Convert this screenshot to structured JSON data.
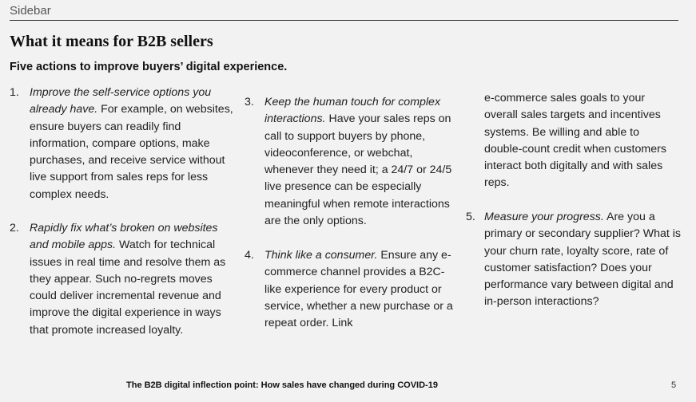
{
  "header": {
    "section_label": "Sidebar",
    "title": "What it means for B2B sellers",
    "subtitle": "Five actions to improve buyers’ digital experience."
  },
  "items": [
    {
      "number": "1.",
      "lead": "Improve the self-service options you already have.",
      "body": " For example, on websites, ensure buyers can readily find information, compare options, make purchases, and receive service without live support from sales reps for less complex needs."
    },
    {
      "number": "2.",
      "lead": "Rapidly fix what’s broken on websites and mobile apps.",
      "body": " Watch for technical issues in real time and resolve them as they appear. Such no-regrets moves could deliver incremental revenue and improve the digital experience in ways that promote increased loyalty."
    },
    {
      "number": "3.",
      "lead": "Keep the human touch for complex interactions.",
      "body": " Have your sales reps on call to support buyers by phone, videoconference, or webchat, whenever they need it; a 24/7 or 24/5 live presence can be especially meaningful when remote interactions are the only options."
    },
    {
      "number": "4.",
      "lead": "Think like a consumer.",
      "body": " Ensure any e-commerce channel provides a B2C-like experience for every product or service, whether a new purchase or a repeat order. Link"
    },
    {
      "continuation": "e-commerce sales goals to your overall sales targets and incentives systems. Be willing and able to double-count credit when customers interact both digitally and with sales reps."
    },
    {
      "number": "5.",
      "lead": "Measure your progress.",
      "body": " Are you a primary or secondary supplier? What is your churn rate, loyalty score, rate of customer satisfaction? Does your performance vary between digital and in-person interactions?"
    }
  ],
  "footer": {
    "title": "The B2B digital inflection point: How sales have changed during COVID-19",
    "page_number": "5"
  }
}
